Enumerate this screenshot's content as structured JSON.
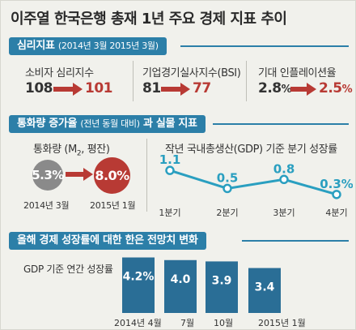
{
  "title": "이주열 한국은행 총재 1년 주요 경제 지표 추이",
  "sentiment": {
    "header": "심리지표",
    "header_sub": "(2014년 3월 2015년 3월)",
    "items": [
      {
        "label": "소비자 심리지수",
        "from": "108",
        "to": "101"
      },
      {
        "label": "기업경기실사지수(BSI)",
        "from": "81",
        "to": "77"
      },
      {
        "label": "기대 인플레이션율",
        "from": "2.8",
        "to": "2.5",
        "unit": "%"
      }
    ]
  },
  "money": {
    "header": "통화량 증가율",
    "header_sub": "(전년 동월 대비)",
    "header_tail": "과 실물 지표",
    "label": "통화량 (M",
    "label_sub": "2",
    "label_tail": ", 평잔)",
    "from_value": "5.3%",
    "to_value": "8.0%",
    "from_date": "2014년 3월",
    "to_date": "2015년 1월"
  },
  "gdp_chart": {
    "title": "작년 국내총생산(GDP) 기준 분기 성장률"
  },
  "forecast": {
    "header": "올해 경제 성장률에 대한 한은 전망치 변화",
    "label": "GDP 기준 연간 성장률"
  },
  "colors": {
    "accent": "#2c7fa8",
    "teal": "#2a9fc0",
    "red": "#b83a34",
    "grey": "#8a8a8a",
    "bar": "#2a6e96"
  },
  "chart_data": [
    {
      "type": "line",
      "title": "작년 국내총생산(GDP) 기준 분기 성장률",
      "categories": [
        "1분기",
        "2분기",
        "3분기",
        "4분기"
      ],
      "values": [
        1.1,
        0.5,
        0.8,
        0.3
      ],
      "value_labels": [
        "1.1",
        "0.5",
        "0.8",
        "0.3%"
      ],
      "ylim": [
        0,
        1.4
      ],
      "grid": false
    },
    {
      "type": "bar",
      "title": "GDP 기준 연간 성장률",
      "categories": [
        "2014년 4월",
        "7월",
        "10월",
        "2015년 1월"
      ],
      "values": [
        4.2,
        4.0,
        3.9,
        3.4
      ],
      "value_labels": [
        "4.2%",
        "4.0",
        "3.9",
        "3.4"
      ],
      "ylim": [
        0,
        4.6
      ],
      "grid": false
    }
  ]
}
